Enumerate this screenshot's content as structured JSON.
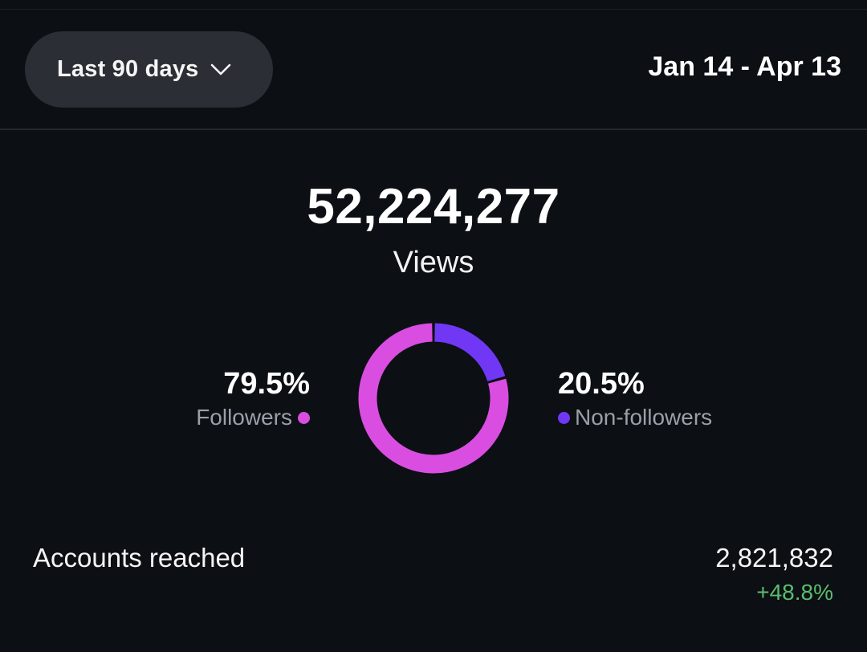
{
  "header": {
    "range_label": "Last 90 days",
    "date_range": "Jan 14 - Apr 13",
    "chevron_icon": "chevron-down-icon"
  },
  "views": {
    "total": "52,224,277",
    "label": "Views"
  },
  "breakdown": {
    "followers": {
      "percent_label": "79.5%",
      "label": "Followers",
      "value": 79.5,
      "color": "#d94ee0"
    },
    "non_followers": {
      "percent_label": "20.5%",
      "label": "Non-followers",
      "value": 20.5,
      "color": "#7038f5"
    }
  },
  "accounts_reached": {
    "label": "Accounts reached",
    "value": "2,821,832",
    "change": "+48.8%",
    "change_color": "#5bbd6e"
  }
}
